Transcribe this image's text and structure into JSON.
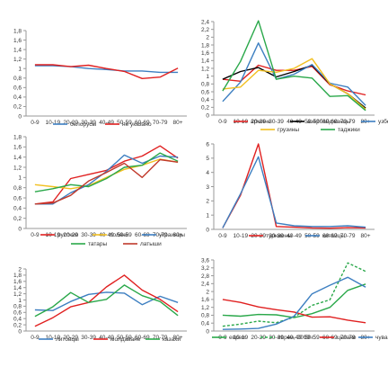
{
  "x_categories": [
    "0-9",
    "10-19",
    "20-29",
    "30-39",
    "40-49",
    "50-59",
    "60-69",
    "70-79",
    "80+"
  ],
  "chart_data": [
    {
      "type": "line",
      "categories": [
        "0-9",
        "10-19",
        "20-29",
        "30-39",
        "40-49",
        "50-59",
        "60-69",
        "70-79",
        "80+"
      ],
      "ylim": [
        0,
        1.8
      ],
      "yticks": [
        "0",
        "0,2",
        "0,4",
        "0,6",
        "0,8",
        "1",
        "1,2",
        "1,4",
        "1,6",
        "1,8"
      ],
      "grid": false,
      "legend": "bottom",
      "series": [
        {
          "name": "белорусы",
          "color": "#3d7fc1",
          "values": [
            1.06,
            1.06,
            1.04,
            1.0,
            0.98,
            0.95,
            0.95,
            0.92,
            0.92
          ]
        },
        {
          "name": "не указано",
          "color": "#e02020",
          "values": [
            1.08,
            1.08,
            1.04,
            1.07,
            1.0,
            0.94,
            0.79,
            0.82,
            1.01
          ]
        }
      ]
    },
    {
      "type": "line",
      "categories": [
        "0-9",
        "10-19",
        "20-29",
        "30-39",
        "40-49",
        "50-59",
        "60-69",
        "70-79",
        "80+"
      ],
      "ylim": [
        0,
        2.4
      ],
      "yticks": [
        "0",
        "0,2",
        "0,4",
        "0,6",
        "0,8",
        "1",
        "1,2",
        "1,4",
        "1,6",
        "1,8",
        "2",
        "2,2",
        "2,4"
      ],
      "grid": false,
      "legend": "bottom",
      "series": [
        {
          "name": "армяне",
          "color": "#e02020",
          "values": [
            0.92,
            0.87,
            1.28,
            1.15,
            1.15,
            1.25,
            0.78,
            0.62,
            0.52
          ]
        },
        {
          "name": "азербайджанцы",
          "color": "#000000",
          "values": [
            0.92,
            1.12,
            1.22,
            0.98,
            1.12,
            1.28,
            0.8,
            0.55,
            0.18
          ]
        },
        {
          "name": "узбеки",
          "color": "#3d7fc1",
          "values": [
            0.35,
            0.85,
            1.85,
            0.92,
            1.05,
            1.3,
            0.82,
            0.72,
            0.25
          ]
        },
        {
          "name": "грузины",
          "color": "#f2c020",
          "values": [
            0.67,
            0.72,
            1.15,
            1.1,
            1.2,
            1.45,
            0.8,
            0.55,
            0.15
          ]
        },
        {
          "name": "таджики",
          "color": "#2aa84a",
          "values": [
            0.62,
            1.38,
            2.42,
            0.92,
            1.0,
            0.95,
            0.48,
            0.5,
            0.12
          ]
        }
      ]
    },
    {
      "type": "line",
      "categories": [
        "0-9",
        "10-19",
        "20-29",
        "30-39",
        "40-49",
        "50-59",
        "60-69",
        "70-79",
        "80+"
      ],
      "ylim": [
        0,
        1.8
      ],
      "yticks": [
        "0",
        "0,2",
        "0,4",
        "0,6",
        "0,8",
        "1",
        "1,2",
        "1,4",
        "1,6",
        "1,8"
      ],
      "grid": false,
      "legend": "bottom",
      "series": [
        {
          "name": "русские",
          "color": "#e02020",
          "values": [
            0.48,
            0.52,
            0.98,
            1.06,
            1.14,
            1.32,
            1.42,
            1.62,
            1.38
          ]
        },
        {
          "name": "поляки",
          "color": "#f2c020",
          "values": [
            0.86,
            0.82,
            0.78,
            0.84,
            1.0,
            1.16,
            1.24,
            1.36,
            1.3
          ]
        },
        {
          "name": "украинцы",
          "color": "#3d7fc1",
          "values": [
            0.48,
            0.48,
            0.7,
            0.86,
            1.12,
            1.44,
            1.28,
            1.42,
            1.4
          ]
        },
        {
          "name": "татары",
          "color": "#2aa84a",
          "values": [
            0.72,
            0.78,
            0.86,
            0.82,
            0.98,
            1.2,
            1.24,
            1.48,
            1.32
          ]
        },
        {
          "name": "латыши",
          "color": "#c0392b",
          "values": [
            0.48,
            0.5,
            0.65,
            0.93,
            1.1,
            1.28,
            1.0,
            1.35,
            1.3
          ]
        }
      ]
    },
    {
      "type": "line",
      "categories": [
        "0-9",
        "10-19",
        "20-29",
        "30-39",
        "40-49",
        "50-59",
        "60-69",
        "70-79",
        "80+"
      ],
      "ylim": [
        0,
        6
      ],
      "yticks": [
        "0",
        "1",
        "2",
        "3",
        "4",
        "5",
        "6"
      ],
      "grid": false,
      "legend": "bottom",
      "series": [
        {
          "name": "туркмены",
          "color": "#e02020",
          "values": [
            0.1,
            2.4,
            6.0,
            0.2,
            0.15,
            0.1,
            0.08,
            0.12,
            0.1
          ]
        },
        {
          "name": "китайцы",
          "color": "#3d7fc1",
          "values": [
            0.1,
            2.5,
            5.1,
            0.45,
            0.25,
            0.2,
            0.2,
            0.25,
            0.15
          ]
        }
      ]
    },
    {
      "type": "line",
      "categories": [
        "0-9",
        "10-19",
        "20-29",
        "30-39",
        "40-49",
        "50-59",
        "60-69",
        "70-79",
        "80+"
      ],
      "ylim": [
        0,
        2
      ],
      "yticks": [
        "0",
        "0,2",
        "0,4",
        "0,6",
        "0,8",
        "1",
        "1,2",
        "1,4",
        "1,6",
        "1,8",
        "2"
      ],
      "grid": false,
      "legend": "bottom",
      "series": [
        {
          "name": "литовцы",
          "color": "#3d7fc1",
          "values": [
            0.68,
            0.66,
            0.95,
            1.18,
            1.25,
            1.22,
            0.85,
            1.12,
            0.92
          ]
        },
        {
          "name": "молдаване",
          "color": "#e02020",
          "values": [
            0.15,
            0.43,
            0.78,
            0.92,
            1.42,
            1.8,
            1.32,
            1.02,
            0.62
          ]
        },
        {
          "name": "казахи",
          "color": "#2aa84a",
          "values": [
            0.47,
            0.78,
            1.24,
            0.92,
            1.02,
            1.48,
            1.14,
            0.95,
            0.5
          ]
        }
      ]
    },
    {
      "type": "line",
      "categories": [
        "0-9",
        "10-19",
        "20-29",
        "30-39",
        "40-49",
        "50-59",
        "60-69",
        "70-79",
        "80+"
      ],
      "ylim": [
        0,
        3.6
      ],
      "yticks": [
        "0",
        "0,4",
        "0,8",
        "1,2",
        "1,6",
        "2",
        "2,4",
        "2,8",
        "3,2",
        "3,6"
      ],
      "grid": false,
      "legend": "bottom",
      "series": [
        {
          "name": "евреи",
          "color": "#2aa84a",
          "dashed": false,
          "values": [
            0.8,
            0.75,
            0.84,
            0.82,
            0.68,
            0.88,
            1.2,
            2.06,
            2.38
          ]
        },
        {
          "name": "евреи, 2009 г.",
          "color": "#2aa84a",
          "dashed": true,
          "values": [
            0.24,
            0.35,
            0.5,
            0.42,
            0.7,
            1.3,
            1.58,
            3.45,
            3.02
          ]
        },
        {
          "name": "цыгане",
          "color": "#e02020",
          "dashed": false,
          "values": [
            1.6,
            1.45,
            1.22,
            1.08,
            0.96,
            0.7,
            0.72,
            0.55,
            0.42
          ]
        },
        {
          "name": "чуваши",
          "color": "#3d7fc1",
          "dashed": false,
          "values": [
            0.08,
            0.1,
            0.13,
            0.35,
            0.75,
            1.88,
            2.32,
            2.72,
            2.22
          ]
        }
      ]
    }
  ]
}
